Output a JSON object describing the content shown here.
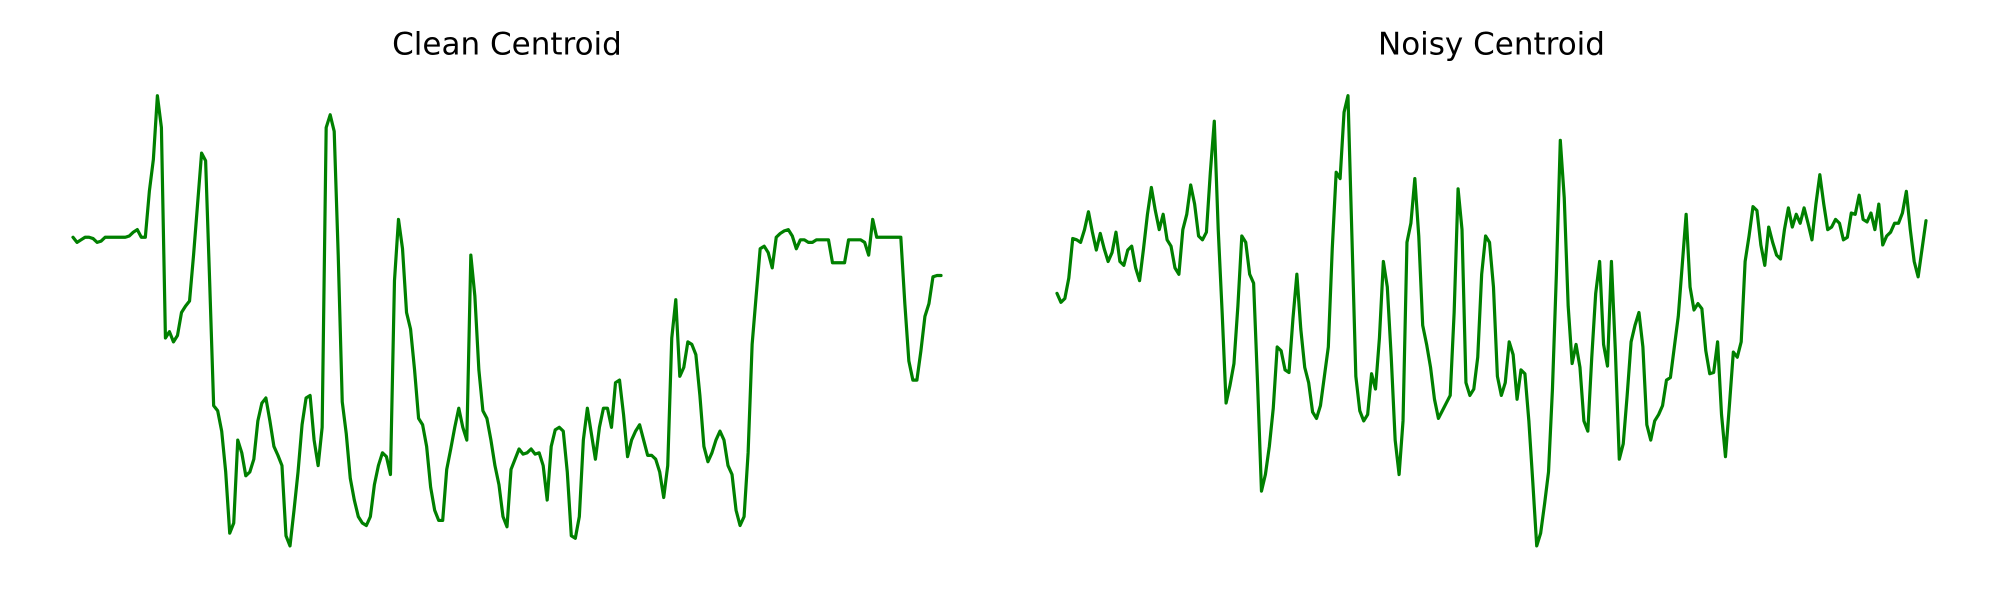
{
  "chart_data": [
    {
      "type": "line",
      "title": "Clean Centroid",
      "color": "#008000",
      "ylim": [
        0,
        400
      ],
      "values": [
        264,
        260,
        262,
        264,
        264,
        263,
        260,
        261,
        264,
        264,
        264,
        264,
        264,
        264,
        265,
        268,
        270,
        264,
        264,
        300,
        325,
        375,
        350,
        185,
        190,
        182,
        187,
        205,
        210,
        214,
        250,
        290,
        330,
        324,
        230,
        132,
        128,
        112,
        80,
        32,
        40,
        105,
        95,
        77,
        80,
        90,
        120,
        134,
        138,
        120,
        100,
        93,
        85,
        30,
        22,
        50,
        80,
        117,
        138,
        140,
        105,
        85,
        115,
        350,
        360,
        347,
        250,
        135,
        110,
        75,
        58,
        45,
        40,
        38,
        45,
        70,
        85,
        95,
        92,
        78,
        230,
        278,
        255,
        205,
        192,
        160,
        122,
        117,
        100,
        68,
        50,
        42,
        42,
        82,
        98,
        115,
        130,
        115,
        105,
        250,
        218,
        160,
        128,
        122,
        105,
        85,
        70,
        45,
        37,
        82,
        90,
        98,
        94,
        95,
        98,
        94,
        95,
        85,
        58,
        100,
        113,
        115,
        112,
        80,
        30,
        28,
        45,
        105,
        130,
        110,
        90,
        115,
        130,
        130,
        115,
        150,
        152,
        125,
        92,
        105,
        112,
        117,
        105,
        93,
        93,
        90,
        80,
        60,
        85,
        185,
        215,
        155,
        162,
        182,
        180,
        172,
        140,
        100,
        88,
        95,
        105,
        112,
        105,
        85,
        78,
        50,
        38,
        45,
        95,
        180,
        218,
        255,
        257,
        252,
        240,
        264,
        267,
        269,
        270,
        265,
        255,
        262,
        262,
        260,
        260,
        262,
        262,
        262,
        262,
        244,
        244,
        244,
        244,
        262,
        262,
        262,
        262,
        260,
        250,
        278,
        264,
        264,
        264,
        264,
        264,
        264,
        264,
        212,
        167,
        152,
        152,
        175,
        202,
        212,
        233,
        234,
        234
      ]
    },
    {
      "type": "line",
      "title": "Noisy Centroid",
      "color": "#008000",
      "ylim": [
        0,
        400
      ],
      "values": [
        220,
        213,
        216,
        232,
        263,
        262,
        260,
        270,
        284,
        268,
        254,
        267,
        255,
        245,
        252,
        268,
        245,
        242,
        254,
        257,
        240,
        230,
        255,
        282,
        303,
        285,
        270,
        282,
        262,
        257,
        240,
        235,
        270,
        282,
        305,
        290,
        265,
        262,
        268,
        315,
        355,
        270,
        205,
        134,
        148,
        165,
        210,
        265,
        260,
        235,
        228,
        150,
        65,
        78,
        100,
        130,
        178,
        175,
        160,
        158,
        200,
        235,
        192,
        162,
        150,
        127,
        122,
        132,
        155,
        178,
        255,
        315,
        310,
        362,
        375,
        265,
        155,
        128,
        120,
        125,
        157,
        145,
        185,
        245,
        225,
        170,
        105,
        78,
        120,
        260,
        275,
        310,
        265,
        195,
        180,
        162,
        137,
        122,
        128,
        134,
        140,
        205,
        302,
        270,
        150,
        140,
        145,
        170,
        235,
        265,
        260,
        225,
        155,
        140,
        150,
        182,
        172,
        137,
        160,
        157,
        120,
        72,
        22,
        32,
        55,
        80,
        145,
        235,
        340,
        295,
        210,
        165,
        180,
        162,
        120,
        112,
        170,
        220,
        245,
        180,
        163,
        245,
        175,
        90,
        102,
        140,
        182,
        195,
        205,
        178,
        117,
        105,
        120,
        125,
        132,
        152,
        154,
        178,
        202,
        242,
        282,
        225,
        207,
        212,
        208,
        175,
        157,
        158,
        182,
        125,
        92,
        132,
        174,
        170,
        182,
        245,
        265,
        288,
        285,
        258,
        242,
        272,
        260,
        250,
        247,
        270,
        287,
        272,
        282,
        275,
        287,
        275,
        262,
        290,
        313,
        290,
        270,
        272,
        278,
        275,
        262,
        264,
        283,
        282,
        297,
        278,
        276,
        283,
        270,
        290,
        258,
        265,
        268,
        275,
        275,
        283,
        300,
        270,
        245,
        233,
        255,
        277
      ]
    }
  ]
}
